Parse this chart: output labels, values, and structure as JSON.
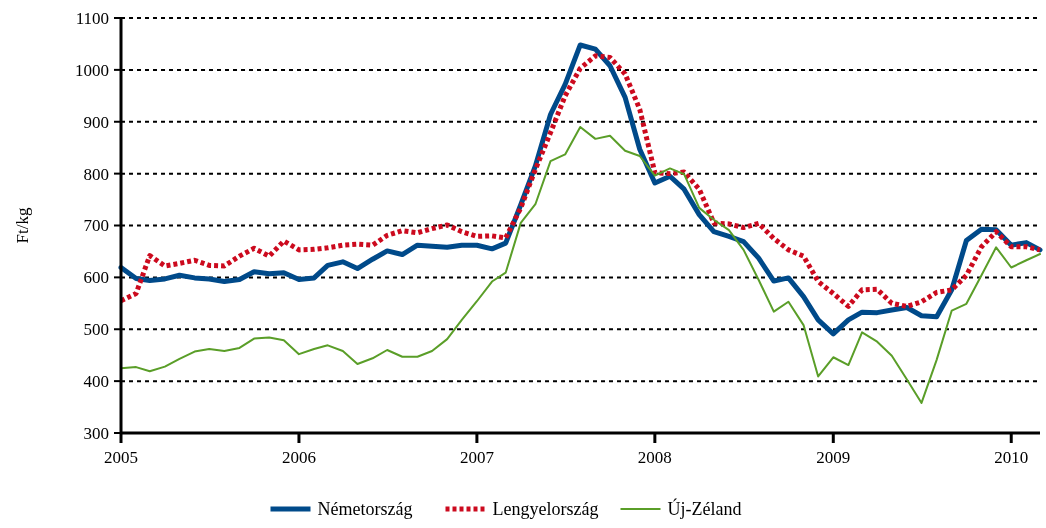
{
  "chart_data": {
    "type": "line",
    "ylabel": "Ft/kg",
    "x": [
      "2005-01",
      "2005-02",
      "2005-03",
      "2005-04",
      "2005-05",
      "2005-06",
      "2005-07",
      "2005-08",
      "2005-09",
      "2005-10",
      "2005-11",
      "2005-12",
      "2006-01",
      "2006-02",
      "2006-03",
      "2006-04",
      "2006-05",
      "2006-06",
      "2006-07",
      "2006-08",
      "2006-09",
      "2006-10",
      "2006-11",
      "2006-12",
      "2007-01",
      "2007-02",
      "2007-03",
      "2007-04",
      "2007-05",
      "2007-06",
      "2007-07",
      "2007-08",
      "2007-09",
      "2007-10",
      "2007-11",
      "2007-12",
      "2008-01",
      "2008-02",
      "2008-03",
      "2008-04",
      "2008-05",
      "2008-06",
      "2008-07",
      "2008-08",
      "2008-09",
      "2008-10",
      "2008-11",
      "2008-12",
      "2009-01",
      "2009-02",
      "2009-03",
      "2009-04",
      "2009-05",
      "2009-06",
      "2009-07",
      "2009-08",
      "2009-09",
      "2009-10",
      "2009-11",
      "2009-12",
      "2010-01",
      "2010-02",
      "2010-03"
    ],
    "series": [
      {
        "name": "Németország",
        "color": "#004a8a",
        "line_style": "solid",
        "values": [
          619,
          598,
          594,
          597,
          604,
          599,
          597,
          592,
          596,
          611,
          607,
          609,
          596,
          599,
          623,
          630,
          617,
          635,
          651,
          644,
          662,
          660,
          658,
          662,
          662,
          655,
          666,
          740,
          815,
          914,
          972,
          1048,
          1040,
          1008,
          947,
          847,
          782,
          795,
          770,
          721,
          688,
          679,
          669,
          637,
          593,
          599,
          563,
          518,
          491,
          518,
          533,
          532,
          537,
          542,
          526,
          524,
          576,
          671,
          693,
          692,
          662,
          667,
          653
        ]
      },
      {
        "name": "Lengyelország",
        "color": "#cc0a1e",
        "line_style": "dotted",
        "values": [
          555,
          569,
          642,
          622,
          627,
          633,
          623,
          622,
          641,
          656,
          641,
          670,
          653,
          654,
          657,
          662,
          664,
          662,
          681,
          690,
          686,
          694,
          701,
          688,
          679,
          680,
          676,
          734,
          808,
          879,
          950,
          1003,
          1027,
          1024,
          992,
          924,
          802,
          800,
          803,
          770,
          705,
          703,
          696,
          704,
          675,
          653,
          641,
          592,
          569,
          544,
          576,
          577,
          550,
          544,
          553,
          571,
          576,
          604,
          659,
          688,
          659,
          659,
          653
        ]
      },
      {
        "name": "Új-Zéland",
        "color": "#5a9e28",
        "line_style": "solid",
        "values": [
          425,
          427,
          419,
          428,
          443,
          457,
          462,
          458,
          464,
          482,
          484,
          479,
          452,
          462,
          469,
          458,
          433,
          444,
          460,
          447,
          447,
          458,
          481,
          518,
          554,
          592,
          609,
          705,
          741,
          824,
          837,
          890,
          867,
          873,
          844,
          834,
          796,
          810,
          799,
          734,
          711,
          691,
          653,
          595,
          534,
          553,
          508,
          409,
          446,
          431,
          494,
          476,
          449,
          403,
          358,
          441,
          536,
          549,
          604,
          658,
          619,
          633,
          645
        ]
      }
    ],
    "xlim": [
      "2005-01",
      "2010-03"
    ],
    "xticks": [
      {
        "value": "2005-01",
        "label": "2005"
      },
      {
        "value": "2006-01",
        "label": "2006"
      },
      {
        "value": "2007-01",
        "label": "2007"
      },
      {
        "value": "2008-01",
        "label": "2008"
      },
      {
        "value": "2009-01",
        "label": "2009"
      },
      {
        "value": "2010-01",
        "label": "2010"
      }
    ],
    "ylim": [
      300,
      1100
    ],
    "yticks": [
      300,
      400,
      500,
      600,
      700,
      800,
      900,
      1000,
      1100
    ],
    "grid": "y",
    "legend": "bottom",
    "marker": "none"
  }
}
